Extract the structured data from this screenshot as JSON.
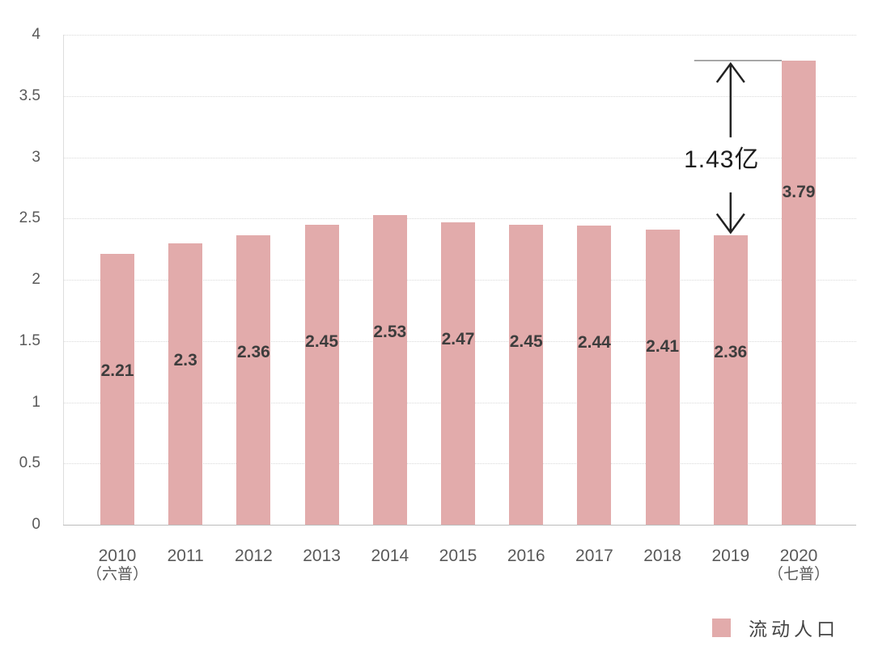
{
  "chart_data": {
    "type": "bar",
    "title": "",
    "xlabel": "",
    "ylabel": "",
    "unit": "亿",
    "categories": [
      "2010",
      "2011",
      "2012",
      "2013",
      "2014",
      "2015",
      "2016",
      "2017",
      "2018",
      "2019",
      "2020"
    ],
    "category_sublabels": [
      "（六普）",
      "",
      "",
      "",
      "",
      "",
      "",
      "",
      "",
      "",
      "（七普）"
    ],
    "values": [
      2.21,
      2.3,
      2.36,
      2.45,
      2.53,
      2.47,
      2.45,
      2.44,
      2.41,
      2.36,
      3.79
    ],
    "value_labels": [
      "2.21",
      "2.3",
      "2.36",
      "2.45",
      "2.53",
      "2.47",
      "2.45",
      "2.44",
      "2.41",
      "2.36",
      "3.79"
    ],
    "ylim": [
      0,
      4
    ],
    "yticks": [
      "0",
      "0.5",
      "1",
      "1.5",
      "2",
      "2.5",
      "3",
      "3.5",
      "4"
    ],
    "grid": "horizontal-dotted",
    "legend": {
      "label": "流动人口",
      "position": "bottom-right"
    },
    "annotation": {
      "label": "1.43亿",
      "from_category": "2019",
      "to_category": "2020"
    },
    "colors": {
      "bar": "#e2abab",
      "gridline": "#d9d9d9",
      "baseline": "#bcbcbc",
      "axis_label": "#595959",
      "value_label": "#3d3d3d",
      "annotation_text": "#1c1c1c",
      "annotation_arrow": "#222222",
      "annotation_refline": "#8c8c8c",
      "background": "#ffffff"
    }
  }
}
